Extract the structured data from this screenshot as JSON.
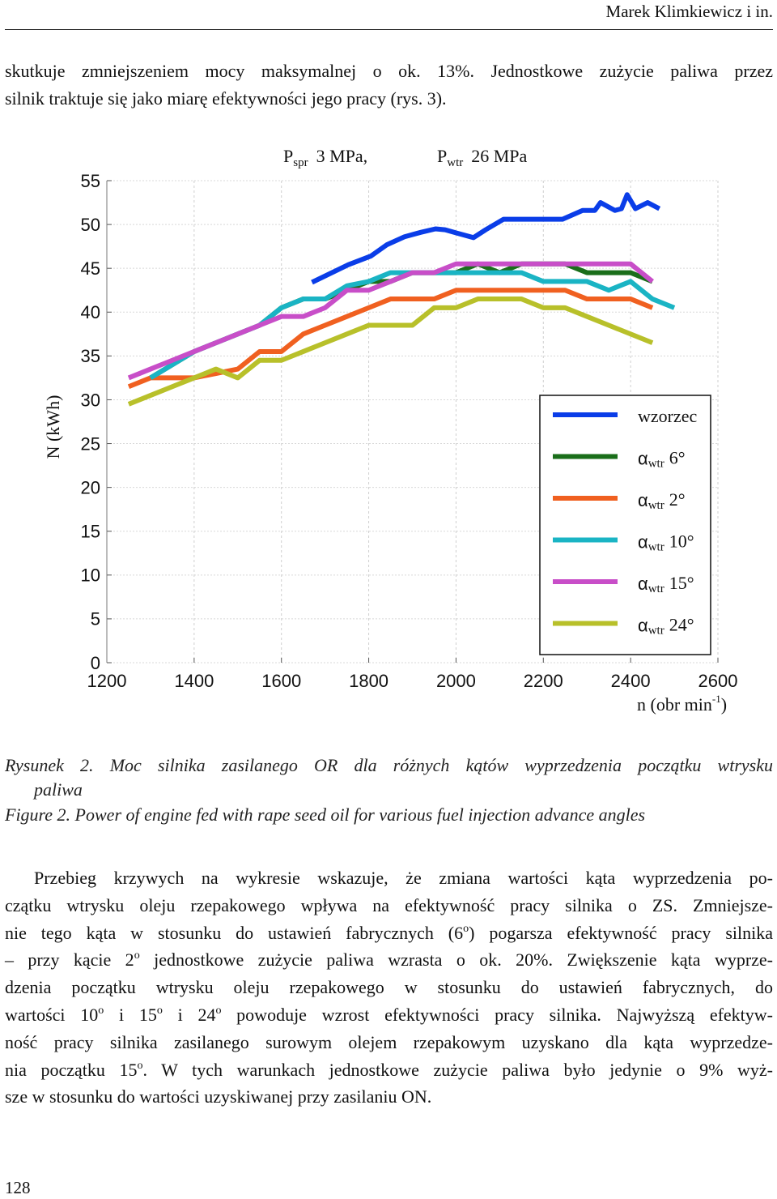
{
  "header": {
    "author": "Marek Klimkiewicz i in."
  },
  "intro_lines": [
    "skutkuje zmniejszeniem mocy maksymalnej o ok. 13%. Jednostkowe zużycie paliwa przez",
    "silnik traktuje się jako miarę efektywności jego pracy (rys. 3)."
  ],
  "chart_data": {
    "type": "line",
    "title": [
      {
        "text": "P",
        "sub": "spr",
        "after": "3 MPa,"
      },
      {
        "text": "P",
        "sub": "wtr",
        "after": "26 MPa"
      }
    ],
    "ylabel": "N (kWh)",
    "xlabel": {
      "text": "n (obr min",
      "sup": "-1",
      "after": ")"
    },
    "xlim": [
      1200,
      2600
    ],
    "xticks": [
      1200,
      1400,
      1600,
      1800,
      2000,
      2200,
      2400,
      2600
    ],
    "ylim": [
      0,
      55
    ],
    "yticks": [
      0,
      5,
      10,
      15,
      20,
      25,
      30,
      35,
      40,
      45,
      50,
      55
    ],
    "grid": true,
    "legend": "right",
    "series": [
      {
        "name": "wzorzec",
        "color": "#0a3de8",
        "x": [
          1670,
          1753,
          1805,
          1842,
          1882,
          1919,
          1953,
          1975,
          2003,
          2040,
          2068,
          2109,
          2151,
          2244,
          2290,
          2318,
          2331,
          2364,
          2379,
          2392,
          2411,
          2439,
          2466
        ],
        "values": [
          43.4,
          45.4,
          46.4,
          47.7,
          48.6,
          49.1,
          49.5,
          49.4,
          49.0,
          48.5,
          49.4,
          50.6,
          50.6,
          50.6,
          51.6,
          51.6,
          52.5,
          51.6,
          51.8,
          53.4,
          51.8,
          52.5,
          51.8
        ]
      },
      {
        "symbol": "α",
        "subscript": "wtr",
        "name": "6°",
        "color": "#1a6e1a",
        "x": [
          1300,
          1350,
          1400,
          1450,
          1500,
          1550,
          1600,
          1650,
          1700,
          1750,
          1800,
          1850,
          1900,
          1950,
          2000,
          2050,
          2100,
          2150,
          2200,
          2250,
          2300,
          2350,
          2400,
          2450
        ],
        "values": [
          32.5,
          34,
          35.5,
          36.5,
          37.5,
          38.5,
          40.5,
          41.5,
          41.5,
          42.5,
          43.5,
          43.5,
          44.5,
          44.5,
          44.5,
          45.5,
          44.5,
          45.5,
          45.5,
          45.5,
          44.5,
          44.5,
          44.5,
          43.5
        ]
      },
      {
        "symbol": "α",
        "subscript": "wtr",
        "name": "2°",
        "color": "#f06020",
        "x": [
          1250,
          1300,
          1350,
          1400,
          1450,
          1500,
          1550,
          1600,
          1650,
          1700,
          1750,
          1800,
          1850,
          1900,
          1950,
          2000,
          2100,
          2200,
          2250,
          2300,
          2400,
          2450
        ],
        "values": [
          31.5,
          32.5,
          32.5,
          32.5,
          33,
          33.5,
          35.5,
          35.5,
          37.5,
          38.5,
          39.5,
          40.5,
          41.5,
          41.5,
          41.5,
          42.5,
          42.5,
          42.5,
          42.5,
          41.5,
          41.5,
          40.5
        ]
      },
      {
        "symbol": "α",
        "subscript": "wtr",
        "name": "10°",
        "color": "#1ab4c4",
        "x": [
          1300,
          1350,
          1400,
          1450,
          1500,
          1550,
          1600,
          1650,
          1700,
          1750,
          1800,
          1850,
          1900,
          2000,
          2100,
          2150,
          2200,
          2300,
          2350,
          2400,
          2450,
          2500
        ],
        "values": [
          32.5,
          34,
          35.5,
          36.5,
          37.5,
          38.5,
          40.5,
          41.5,
          41.5,
          43,
          43.5,
          44.5,
          44.5,
          44.5,
          44.5,
          44.5,
          43.5,
          43.5,
          42.5,
          43.5,
          41.5,
          40.5
        ]
      },
      {
        "symbol": "α",
        "subscript": "wtr",
        "name": "15°",
        "color": "#c84ec8",
        "x": [
          1250,
          1300,
          1350,
          1400,
          1450,
          1500,
          1550,
          1600,
          1650,
          1700,
          1750,
          1800,
          1850,
          1900,
          1950,
          2000,
          2100,
          2200,
          2300,
          2400,
          2450
        ],
        "values": [
          32.5,
          33.5,
          34.5,
          35.5,
          36.5,
          37.5,
          38.5,
          39.5,
          39.5,
          40.5,
          42.5,
          42.5,
          43.5,
          44.5,
          44.5,
          45.5,
          45.5,
          45.5,
          45.5,
          45.5,
          43.5
        ]
      },
      {
        "symbol": "α",
        "subscript": "wtr",
        "name": "24°",
        "color": "#b8c02a",
        "x": [
          1250,
          1300,
          1350,
          1400,
          1450,
          1500,
          1550,
          1600,
          1650,
          1700,
          1750,
          1800,
          1850,
          1900,
          1950,
          2000,
          2050,
          2100,
          2150,
          2200,
          2250,
          2300,
          2350,
          2450
        ],
        "values": [
          29.5,
          30.5,
          31.5,
          32.5,
          33.5,
          32.5,
          34.5,
          34.5,
          35.5,
          36.5,
          37.5,
          38.5,
          38.5,
          38.5,
          40.5,
          40.5,
          41.5,
          41.5,
          41.5,
          40.5,
          40.5,
          39.5,
          38.5,
          36.5
        ]
      }
    ]
  },
  "caption": {
    "pl_lines": [
      "Rysunek 2. Moc silnika zasilanego OR dla różnych kątów wyprzedzenia początku wtrysku",
      "paliwa"
    ],
    "en": "Figure 2. Power of engine fed with rape seed oil for various fuel injection advance angles"
  },
  "paragraph_lines": [
    [
      "Przebieg krzywych na wykresie wskazuje, że zmiana wartości kąta wyprzedzenia po-"
    ],
    [
      "czątku wtrysku oleju rzepakowego wpływa na efektywność pracy silnika o ZS. Zmniejsze-"
    ],
    [
      "nie tego kąta w stosunku do ustawień fabrycznych (6",
      {
        "sup": "o"
      },
      ") pogarsza efektywność pracy silnika"
    ],
    [
      "– przy kącie 2",
      {
        "sup": "o"
      },
      " jednostkowe zużycie paliwa wzrasta o ok. 20%. Zwiększenie kąta wyprze-"
    ],
    [
      "dzenia początku wtrysku oleju rzepakowego w stosunku do ustawień fabrycznych, do"
    ],
    [
      "wartości 10",
      {
        "sup": "o"
      },
      " i 15",
      {
        "sup": "o"
      },
      " i 24",
      {
        "sup": "o"
      },
      " powoduje wzrost efektywności pracy silnika.  Najwyższą efektyw-"
    ],
    [
      "ność pracy silnika zasilanego surowym olejem rzepakowym uzyskano dla kąta wyprzedze-"
    ],
    [
      "nia początku 15",
      {
        "sup": "o"
      },
      ". W tych warunkach jednostkowe zużycie paliwa było jedynie o 9% wyż-"
    ],
    [
      "sze w stosunku do wartości uzyskiwanej przy zasilaniu ON."
    ]
  ],
  "page_number": "128"
}
